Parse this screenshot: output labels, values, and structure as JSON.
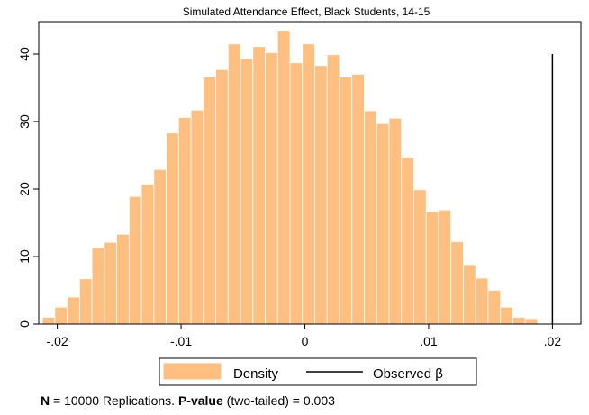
{
  "chart_data": {
    "type": "bar",
    "title": "Simulated Attendance Effect, Black Students, 14-15",
    "xlim": [
      -0.0215,
      0.0223
    ],
    "ylim": [
      0,
      44.8
    ],
    "xticks": [
      -0.02,
      -0.01,
      0,
      0.01,
      0.02
    ],
    "xtick_labels": [
      "-.02",
      "-.01",
      "0",
      ".01",
      ".02"
    ],
    "yticks": [
      0,
      10,
      20,
      30,
      40
    ],
    "ytick_labels": [
      "0",
      "10",
      "20",
      "30",
      "40"
    ],
    "bin_start": -0.0212,
    "bin_width": 0.001,
    "series": [
      {
        "name": "Density",
        "color": "#ffbf80",
        "values": [
          1.0,
          2.5,
          4.0,
          6.7,
          11.3,
          12.1,
          13.3,
          18.9,
          20.7,
          22.9,
          28.3,
          30.6,
          31.7,
          36.6,
          37.7,
          41.5,
          39.3,
          41.1,
          40.2,
          43.5,
          38.7,
          41.5,
          38.3,
          39.9,
          36.6,
          37.0,
          31.6,
          29.7,
          30.5,
          24.7,
          19.9,
          16.6,
          16.9,
          12.2,
          8.8,
          6.8,
          5.0,
          2.5,
          1.0,
          0.8
        ]
      }
    ],
    "observed_line": {
      "name": "Observed β",
      "x": 0.02,
      "y_top": 40.0,
      "color": "#000000"
    },
    "grid": false,
    "legend_placement": "bottom"
  },
  "note": {
    "n_label": "N",
    "n_text": " = 10000 Replications. ",
    "p_label": "P-value",
    "p_text": " (two-tailed) = 0.003"
  }
}
